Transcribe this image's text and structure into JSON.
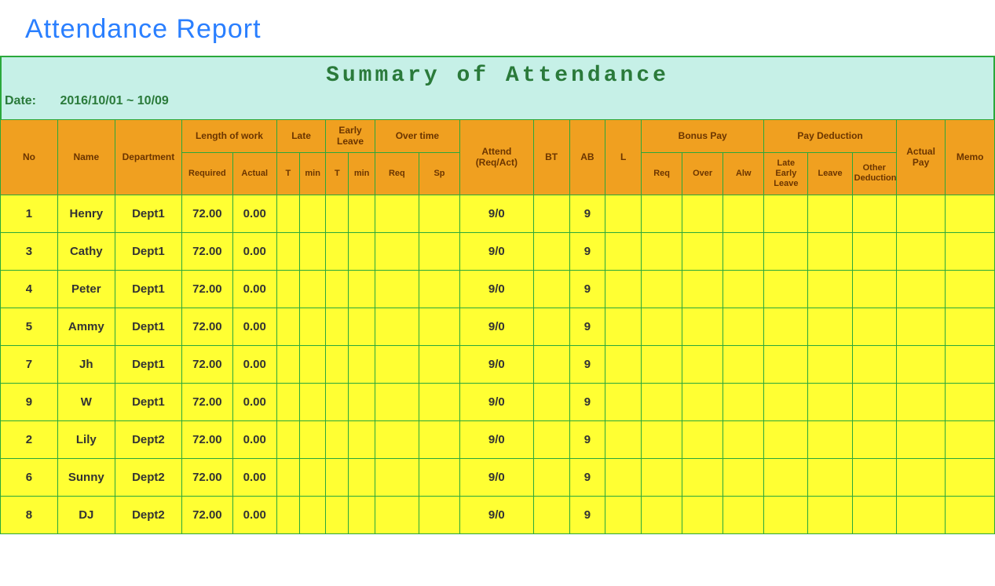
{
  "page": {
    "title": "Attendance  Report",
    "summary_title": "Summary of Attendance",
    "date_label": "Date:",
    "date_value": "2016/10/01 ~ 10/09"
  },
  "colors": {
    "title": "#2a7fff",
    "banner_bg": "#c6f0e7",
    "banner_text": "#2a7a3a",
    "header_bg": "#f0a020",
    "header_text": "#6b3500",
    "cell_bg": "#ffff33",
    "border": "#2aa83b"
  },
  "headers": {
    "no": "No",
    "name": "Name",
    "dept": "Department",
    "length_group": "Length of work",
    "late_group": "Late",
    "early_group": "Early Leave",
    "over_group": "Over time",
    "attend": "Attend (Req/Act)",
    "bt": "BT",
    "ab": "AB",
    "l": "L",
    "bonus_group": "Bonus Pay",
    "ded_group": "Pay Deduction",
    "actual_pay": "Actual Pay",
    "memo": "Memo",
    "required": "Required",
    "actual": "Actual",
    "t": "T",
    "min": "min",
    "req": "Req",
    "sp": "Sp",
    "b_req": "Req",
    "b_over": "Over",
    "b_alw": "Alw",
    "d_late": "Late Early Leave",
    "d_leave": "Leave",
    "d_other": "Other Deduction"
  },
  "rows": [
    {
      "no": "1",
      "name": "Henry",
      "dept": "Dept1",
      "required": "72.00",
      "actual": "0.00",
      "lt": "",
      "lmin": "",
      "et": "",
      "emin": "",
      "otr": "",
      "ots": "",
      "attend": "9/0",
      "bt": "",
      "ab": "9",
      "l": "",
      "br": "",
      "bo": "",
      "ba": "",
      "pl": "",
      "pv": "",
      "po": "",
      "ap": "",
      "me": ""
    },
    {
      "no": "3",
      "name": "Cathy",
      "dept": "Dept1",
      "required": "72.00",
      "actual": "0.00",
      "lt": "",
      "lmin": "",
      "et": "",
      "emin": "",
      "otr": "",
      "ots": "",
      "attend": "9/0",
      "bt": "",
      "ab": "9",
      "l": "",
      "br": "",
      "bo": "",
      "ba": "",
      "pl": "",
      "pv": "",
      "po": "",
      "ap": "",
      "me": ""
    },
    {
      "no": "4",
      "name": "Peter",
      "dept": "Dept1",
      "required": "72.00",
      "actual": "0.00",
      "lt": "",
      "lmin": "",
      "et": "",
      "emin": "",
      "otr": "",
      "ots": "",
      "attend": "9/0",
      "bt": "",
      "ab": "9",
      "l": "",
      "br": "",
      "bo": "",
      "ba": "",
      "pl": "",
      "pv": "",
      "po": "",
      "ap": "",
      "me": ""
    },
    {
      "no": "5",
      "name": "Ammy",
      "dept": "Dept1",
      "required": "72.00",
      "actual": "0.00",
      "lt": "",
      "lmin": "",
      "et": "",
      "emin": "",
      "otr": "",
      "ots": "",
      "attend": "9/0",
      "bt": "",
      "ab": "9",
      "l": "",
      "br": "",
      "bo": "",
      "ba": "",
      "pl": "",
      "pv": "",
      "po": "",
      "ap": "",
      "me": ""
    },
    {
      "no": "7",
      "name": "Jh",
      "dept": "Dept1",
      "required": "72.00",
      "actual": "0.00",
      "lt": "",
      "lmin": "",
      "et": "",
      "emin": "",
      "otr": "",
      "ots": "",
      "attend": "9/0",
      "bt": "",
      "ab": "9",
      "l": "",
      "br": "",
      "bo": "",
      "ba": "",
      "pl": "",
      "pv": "",
      "po": "",
      "ap": "",
      "me": ""
    },
    {
      "no": "9",
      "name": "W",
      "dept": "Dept1",
      "required": "72.00",
      "actual": "0.00",
      "lt": "",
      "lmin": "",
      "et": "",
      "emin": "",
      "otr": "",
      "ots": "",
      "attend": "9/0",
      "bt": "",
      "ab": "9",
      "l": "",
      "br": "",
      "bo": "",
      "ba": "",
      "pl": "",
      "pv": "",
      "po": "",
      "ap": "",
      "me": ""
    },
    {
      "no": "2",
      "name": "Lily",
      "dept": "Dept2",
      "required": "72.00",
      "actual": "0.00",
      "lt": "",
      "lmin": "",
      "et": "",
      "emin": "",
      "otr": "",
      "ots": "",
      "attend": "9/0",
      "bt": "",
      "ab": "9",
      "l": "",
      "br": "",
      "bo": "",
      "ba": "",
      "pl": "",
      "pv": "",
      "po": "",
      "ap": "",
      "me": ""
    },
    {
      "no": "6",
      "name": "Sunny",
      "dept": "Dept2",
      "required": "72.00",
      "actual": "0.00",
      "lt": "",
      "lmin": "",
      "et": "",
      "emin": "",
      "otr": "",
      "ots": "",
      "attend": "9/0",
      "bt": "",
      "ab": "9",
      "l": "",
      "br": "",
      "bo": "",
      "ba": "",
      "pl": "",
      "pv": "",
      "po": "",
      "ap": "",
      "me": ""
    },
    {
      "no": "8",
      "name": "DJ",
      "dept": "Dept2",
      "required": "72.00",
      "actual": "0.00",
      "lt": "",
      "lmin": "",
      "et": "",
      "emin": "",
      "otr": "",
      "ots": "",
      "attend": "9/0",
      "bt": "",
      "ab": "9",
      "l": "",
      "br": "",
      "bo": "",
      "ba": "",
      "pl": "",
      "pv": "",
      "po": "",
      "ap": "",
      "me": ""
    }
  ]
}
